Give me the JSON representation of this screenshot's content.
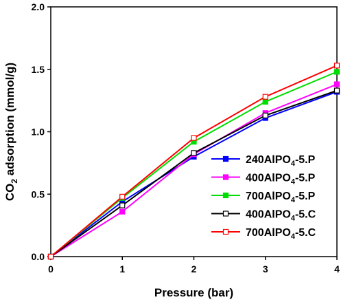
{
  "chart_data": {
    "type": "line",
    "title": "",
    "xlabel": "Pressure (bar)",
    "ylabel_parts": {
      "prefix": "CO",
      "subscript": "2",
      "suffix": " adsorption (mmol/g)"
    },
    "x": [
      0,
      1,
      2,
      3,
      4
    ],
    "xlim": [
      0,
      4
    ],
    "ylim": [
      0,
      2.0
    ],
    "x_ticks": [
      "0",
      "1",
      "2",
      "3",
      "4"
    ],
    "y_ticks": [
      "0.0",
      "0.5",
      "1.0",
      "1.5",
      "2.0"
    ],
    "grid": false,
    "legend_position": "center-right",
    "series": [
      {
        "name": "240AlPO4-5.P",
        "name_parts": {
          "main": "240AlPO",
          "sub": "4",
          "tail": "-5.P"
        },
        "color": "#0000ff",
        "marker": "filled-square",
        "values": [
          0,
          0.44,
          0.8,
          1.11,
          1.32
        ]
      },
      {
        "name": "400AlPO4-5.P",
        "name_parts": {
          "main": "400AlPO",
          "sub": "4",
          "tail": "-5.P"
        },
        "color": "#ff00ff",
        "marker": "filled-square",
        "values": [
          0,
          0.36,
          0.82,
          1.15,
          1.38
        ]
      },
      {
        "name": "700AlPO4-5.P",
        "name_parts": {
          "main": "700AlPO",
          "sub": "4",
          "tail": "-5.P"
        },
        "color": "#00dd00",
        "marker": "filled-square",
        "values": [
          0,
          0.47,
          0.92,
          1.24,
          1.48
        ]
      },
      {
        "name": "400AlPO4-5.C",
        "name_parts": {
          "main": "400AlPO",
          "sub": "4",
          "tail": "-5.C"
        },
        "color": "#000000",
        "marker": "open-square",
        "values": [
          0,
          0.41,
          0.83,
          1.13,
          1.33
        ]
      },
      {
        "name": "700AlPO4-5.C",
        "name_parts": {
          "main": "700AlPO",
          "sub": "4",
          "tail": "-5.C"
        },
        "color": "#ff0000",
        "marker": "open-square",
        "values": [
          0,
          0.48,
          0.95,
          1.28,
          1.53
        ]
      }
    ]
  }
}
